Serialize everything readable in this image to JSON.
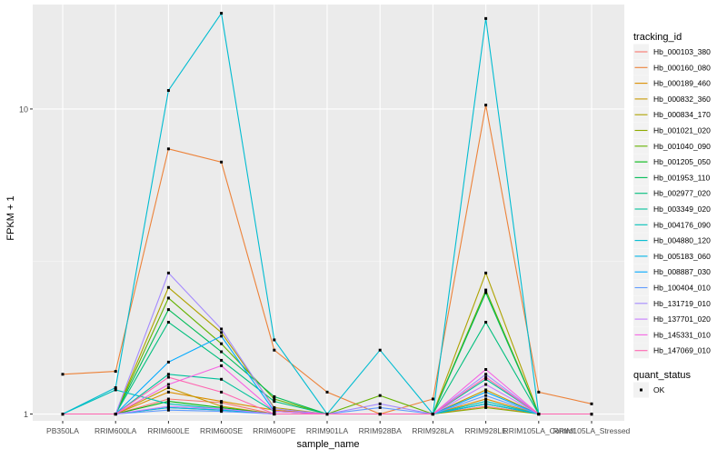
{
  "chart_data": {
    "type": "line",
    "title": "",
    "xlabel": "sample_name",
    "ylabel": "FPKM + 1",
    "y_scale": "log10",
    "ylim": [
      0.95,
      22
    ],
    "y_ticks": [
      1,
      10
    ],
    "y_tick_labels": [
      "1",
      "10"
    ],
    "categories": [
      "PB350LA",
      "RRIM600LA",
      "RRIM600LE",
      "RRIM600SE",
      "RRIM600PE",
      "RRIM901LA",
      "RRIM928BA",
      "RRIM928LA",
      "RRIM928LE",
      "RRIM105LA_Control",
      "RRIM105LA_Stressed"
    ],
    "x_tick_labels": [
      "PB350LA",
      "RRIM600LA",
      "RRIM600LE",
      "RRIM600SE",
      "RRIM600PE",
      "RRIM901LA",
      "RRIM928BA",
      "RRIM928LA",
      "RRIM928LE",
      "RRIM105LA_Control",
      "RRIM105LA_Stressed"
    ],
    "legend_title": "tracking_id",
    "legend_position": "right",
    "shape_legend_title": "quant_status",
    "shape_legend_items": [
      "OK"
    ],
    "series": [
      {
        "name": "Hb_000103_380",
        "color": "#F8766D",
        "values": [
          1,
          1,
          1.12,
          1.09,
          1,
          1,
          1,
          1,
          1.06,
          1,
          1
        ]
      },
      {
        "name": "Hb_000160_080",
        "color": "#EC8239",
        "values": [
          1.35,
          1.38,
          7.4,
          6.7,
          1.62,
          1.18,
          1,
          1.12,
          10.3,
          1.18,
          1.08
        ]
      },
      {
        "name": "Hb_000189_460",
        "color": "#DB8E00",
        "values": [
          1,
          1,
          1.18,
          1.1,
          1.03,
          1,
          1,
          1,
          1.12,
          1,
          1
        ]
      },
      {
        "name": "Hb_000832_360",
        "color": "#C79800",
        "values": [
          1,
          1,
          1.22,
          1.06,
          1,
          1,
          1,
          1,
          1.2,
          1,
          1
        ]
      },
      {
        "name": "Hb_000834_170",
        "color": "#AEA200",
        "values": [
          1,
          1,
          2.6,
          1.85,
          1.05,
          1,
          1,
          1,
          2.9,
          1,
          1
        ]
      },
      {
        "name": "Hb_001021_020",
        "color": "#8FAA00",
        "values": [
          1,
          1,
          1.05,
          1.03,
          1,
          1,
          1,
          1,
          1.05,
          1,
          1
        ]
      },
      {
        "name": "Hb_001040_090",
        "color": "#64B200",
        "values": [
          1,
          1,
          2.4,
          1.7,
          1.12,
          1,
          1.15,
          1,
          2.55,
          1,
          1
        ]
      },
      {
        "name": "Hb_001205_050",
        "color": "#00B712",
        "values": [
          1,
          1,
          1.1,
          1.05,
          1,
          1,
          1,
          1,
          1.08,
          1,
          1
        ]
      },
      {
        "name": "Hb_001953_110",
        "color": "#00BC56",
        "values": [
          1,
          1,
          2.2,
          1.6,
          1.14,
          1,
          1,
          1,
          2.5,
          1,
          1
        ]
      },
      {
        "name": "Hb_002977_020",
        "color": "#00BF7D",
        "values": [
          1,
          1,
          2.0,
          1.5,
          1.1,
          1,
          1,
          1,
          2.0,
          1,
          1
        ]
      },
      {
        "name": "Hb_003349_020",
        "color": "#00C19C",
        "values": [
          1,
          1,
          1.35,
          1.3,
          1.02,
          1,
          1,
          1,
          1.3,
          1,
          1
        ]
      },
      {
        "name": "Hb_004176_090",
        "color": "#00C0B8",
        "values": [
          1,
          1.2,
          1.08,
          1.04,
          1,
          1,
          1,
          1,
          1.1,
          1,
          1
        ]
      },
      {
        "name": "Hb_004880_120",
        "color": "#00BCD1",
        "values": [
          1,
          1.22,
          11.5,
          20.6,
          1.75,
          1,
          1.62,
          1,
          19.8,
          1,
          1
        ]
      },
      {
        "name": "Hb_005183_060",
        "color": "#00B5E7",
        "values": [
          1,
          1,
          1.05,
          1.03,
          1,
          1,
          1,
          1,
          1.08,
          1,
          1
        ]
      },
      {
        "name": "Hb_008887_030",
        "color": "#00A9FF",
        "values": [
          1,
          1,
          1.48,
          1.8,
          1.02,
          1,
          1,
          1,
          1.18,
          1,
          1
        ]
      },
      {
        "name": "Hb_100404_010",
        "color": "#619CFF",
        "values": [
          1,
          1,
          1.03,
          1.02,
          1,
          1,
          1.05,
          1,
          1.15,
          1,
          1
        ]
      },
      {
        "name": "Hb_131719_010",
        "color": "#A58AFF",
        "values": [
          1,
          1,
          2.9,
          1.9,
          1.04,
          1,
          1.08,
          1,
          1.35,
          1,
          1
        ]
      },
      {
        "name": "Hb_137701_020",
        "color": "#C77CFF",
        "values": [
          1,
          1,
          1.06,
          1.04,
          1,
          1,
          1,
          1,
          1.25,
          1,
          1
        ]
      },
      {
        "name": "Hb_145331_010",
        "color": "#F564E3",
        "values": [
          1,
          1,
          1.25,
          1.44,
          1.02,
          1,
          1,
          1,
          1.4,
          1,
          1
        ]
      },
      {
        "name": "Hb_147069_010",
        "color": "#FF64B0",
        "values": [
          1,
          1,
          1.32,
          1.18,
          1,
          1,
          1,
          1,
          1.32,
          1,
          1
        ]
      }
    ]
  }
}
